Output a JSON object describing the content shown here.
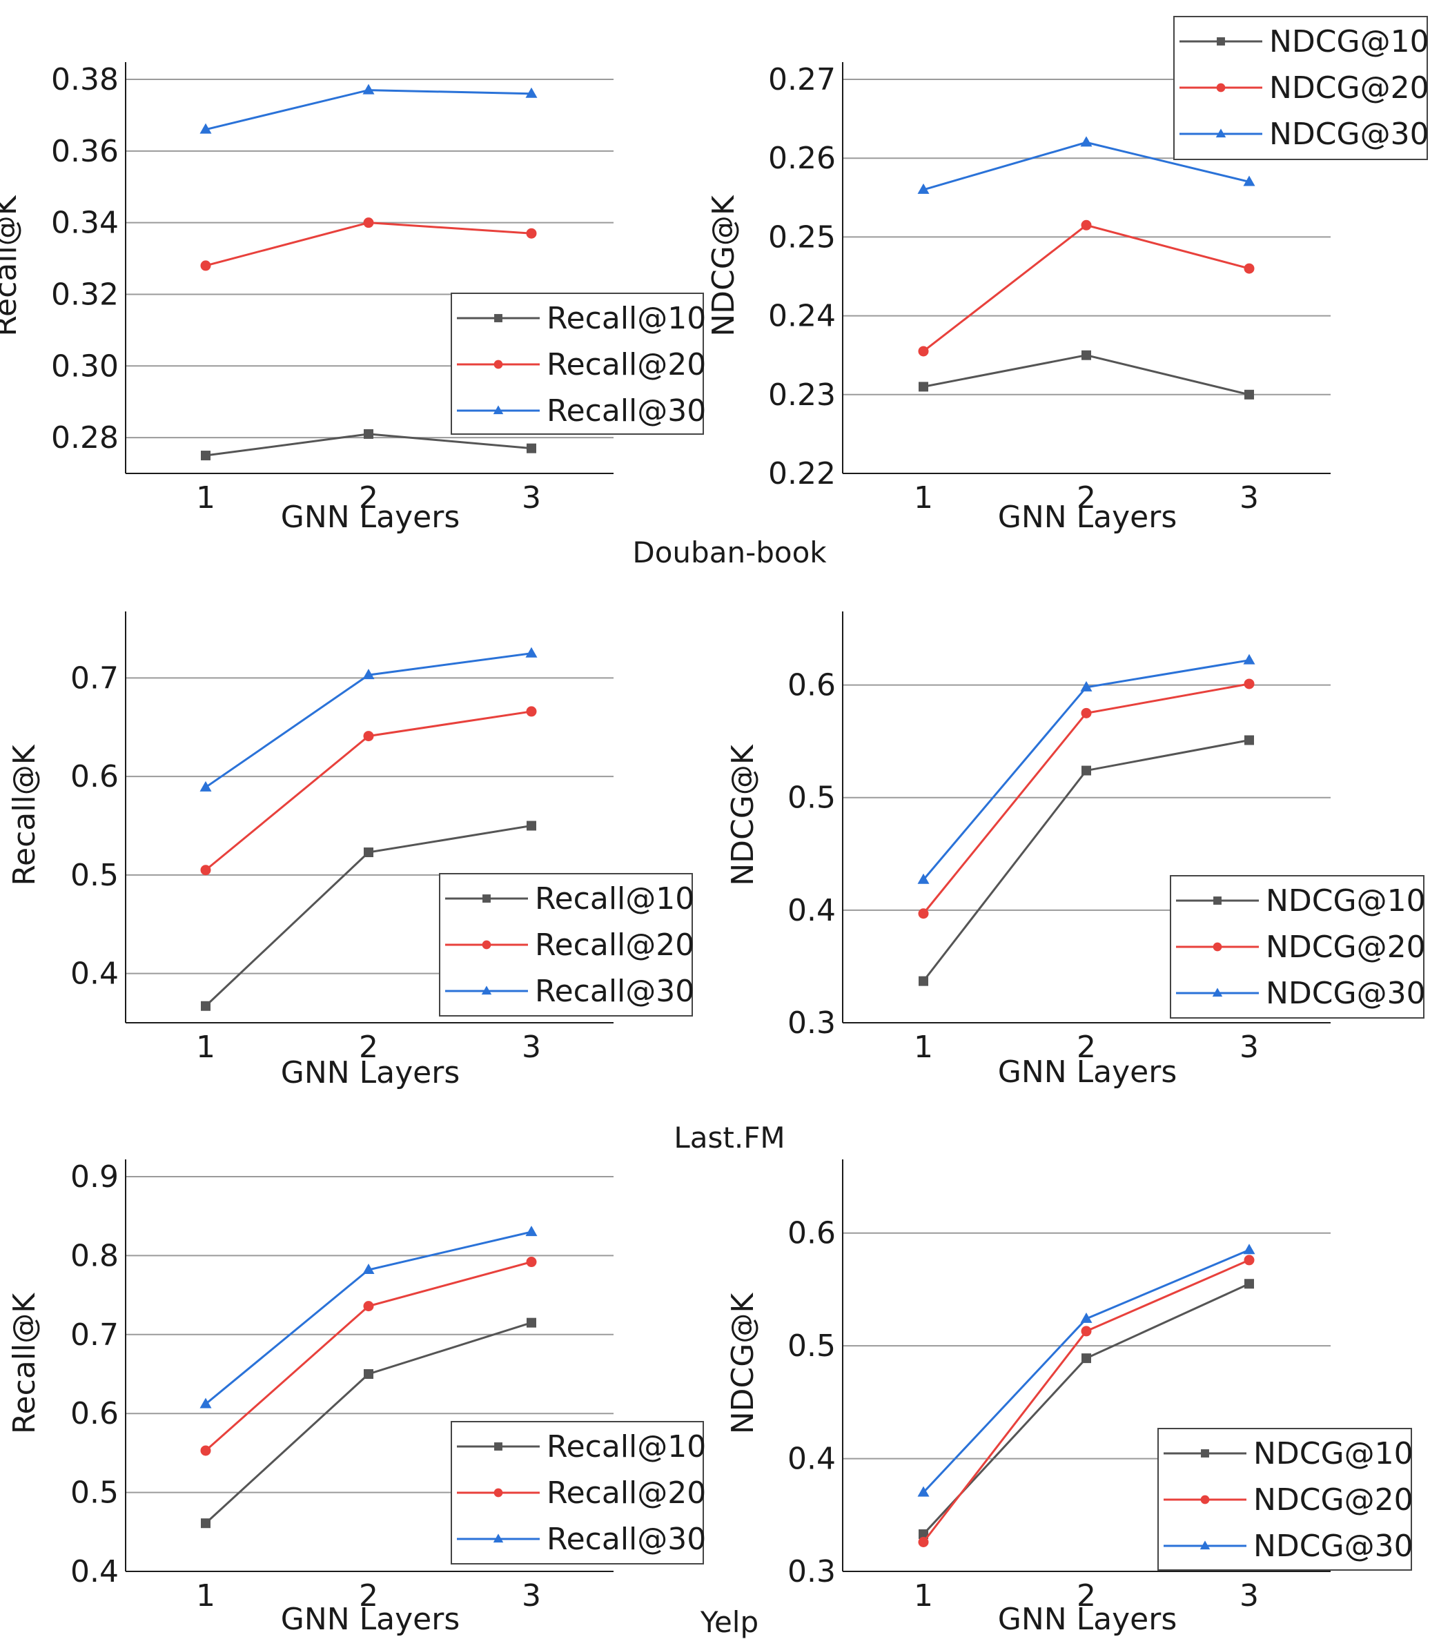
{
  "sections": [
    {
      "label": "Douban-book"
    },
    {
      "label": "Last.FM"
    },
    {
      "label": "Yelp"
    }
  ],
  "colors": {
    "s10": "#555555",
    "s20": "#e8413c",
    "s30": "#2a72d8",
    "grid": "#9a9a9a",
    "axis": "#1a1a1a"
  },
  "chart_data": [
    {
      "type": "line",
      "title": "",
      "xlabel": "GNN Layers",
      "ylabel": "Recall@K",
      "x": [
        1,
        2,
        3
      ],
      "ylim": [
        0.27,
        0.38
      ],
      "yticks": [
        "0.28",
        "0.30",
        "0.32",
        "0.34",
        "0.36",
        "0.38"
      ],
      "grid": true,
      "legend_loc": "right",
      "series": [
        {
          "name": "Recall@10",
          "marker": "square",
          "values": [
            0.275,
            0.281,
            0.277
          ]
        },
        {
          "name": "Recall@20",
          "marker": "circle",
          "values": [
            0.328,
            0.34,
            0.337
          ]
        },
        {
          "name": "Recall@30",
          "marker": "triangle",
          "values": [
            0.366,
            0.377,
            0.376
          ]
        }
      ]
    },
    {
      "type": "line",
      "title": "",
      "xlabel": "GNN Layers",
      "ylabel": "NDCG@K",
      "x": [
        1,
        2,
        3
      ],
      "ylim": [
        0.22,
        0.27
      ],
      "yticks": [
        "0.22",
        "0.23",
        "0.24",
        "0.25",
        "0.26",
        "0.27"
      ],
      "grid": true,
      "legend_loc": "top-right",
      "series": [
        {
          "name": "NDCG@10",
          "marker": "square",
          "values": [
            0.231,
            0.235,
            0.23
          ]
        },
        {
          "name": "NDCG@20",
          "marker": "circle",
          "values": [
            0.2355,
            0.2515,
            0.246
          ]
        },
        {
          "name": "NDCG@30",
          "marker": "triangle",
          "values": [
            0.256,
            0.262,
            0.257
          ]
        }
      ]
    },
    {
      "type": "line",
      "title": "",
      "xlabel": "GNN Layers",
      "ylabel": "Recall@K",
      "x": [
        1,
        2,
        3
      ],
      "ylim": [
        0.35,
        0.75
      ],
      "yticks": [
        "0.4",
        "0.5",
        "0.6",
        "0.7"
      ],
      "grid": true,
      "legend_loc": "lower-right",
      "series": [
        {
          "name": "Recall@10",
          "marker": "square",
          "values": [
            0.367,
            0.523,
            0.55
          ]
        },
        {
          "name": "Recall@20",
          "marker": "circle",
          "values": [
            0.505,
            0.641,
            0.666
          ]
        },
        {
          "name": "Recall@30",
          "marker": "triangle",
          "values": [
            0.589,
            0.703,
            0.725
          ]
        }
      ]
    },
    {
      "type": "line",
      "title": "",
      "xlabel": "GNN Layers",
      "ylabel": "NDCG@K",
      "x": [
        1,
        2,
        3
      ],
      "ylim": [
        0.3,
        0.65
      ],
      "yticks": [
        "0.3",
        "0.4",
        "0.5",
        "0.6"
      ],
      "grid": true,
      "legend_loc": "lower-right",
      "series": [
        {
          "name": "NDCG@10",
          "marker": "square",
          "values": [
            0.337,
            0.524,
            0.551
          ]
        },
        {
          "name": "NDCG@20",
          "marker": "circle",
          "values": [
            0.397,
            0.575,
            0.601
          ]
        },
        {
          "name": "NDCG@30",
          "marker": "triangle",
          "values": [
            0.427,
            0.598,
            0.622
          ]
        }
      ]
    },
    {
      "type": "line",
      "title": "",
      "xlabel": "GNN Layers",
      "ylabel": "Recall@K",
      "x": [
        1,
        2,
        3
      ],
      "ylim": [
        0.4,
        0.9
      ],
      "yticks": [
        "0.4",
        "0.5",
        "0.6",
        "0.7",
        "0.8",
        "0.9"
      ],
      "grid": true,
      "legend_loc": "lower-right",
      "series": [
        {
          "name": "Recall@10",
          "marker": "square",
          "values": [
            0.461,
            0.65,
            0.715
          ]
        },
        {
          "name": "Recall@20",
          "marker": "circle",
          "values": [
            0.553,
            0.736,
            0.792
          ]
        },
        {
          "name": "Recall@30",
          "marker": "triangle",
          "values": [
            0.612,
            0.782,
            0.83
          ]
        }
      ]
    },
    {
      "type": "line",
      "title": "",
      "xlabel": "GNN Layers",
      "ylabel": "NDCG@K",
      "x": [
        1,
        2,
        3
      ],
      "ylim": [
        0.3,
        0.65
      ],
      "yticks": [
        "0.3",
        "0.4",
        "0.5",
        "0.6"
      ],
      "grid": true,
      "legend_loc": "lower-right",
      "series": [
        {
          "name": "NDCG@10",
          "marker": "square",
          "values": [
            0.333,
            0.489,
            0.555
          ]
        },
        {
          "name": "NDCG@20",
          "marker": "circle",
          "values": [
            0.326,
            0.513,
            0.576
          ]
        },
        {
          "name": "NDCG@30",
          "marker": "triangle",
          "values": [
            0.37,
            0.524,
            0.585
          ]
        }
      ]
    }
  ]
}
